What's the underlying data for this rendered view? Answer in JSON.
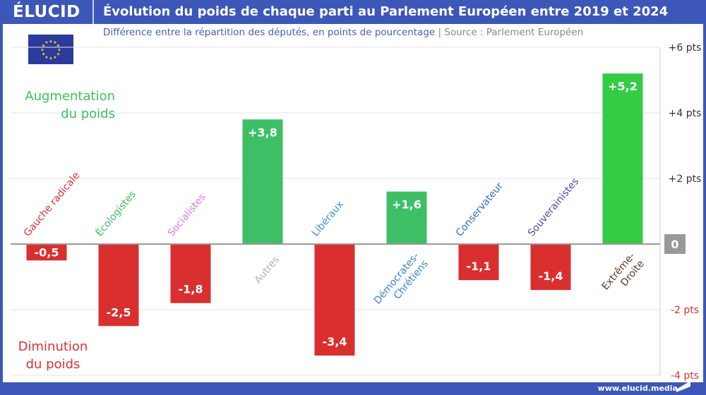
{
  "header": {
    "logo": "ÉLUCID",
    "title": "Évolution du poids de chaque parti au Parlement Européen entre 2019 et 2024"
  },
  "subtitle": {
    "text": "Différence entre la répartition des députés, en points de pourcentage",
    "separator": "|",
    "source": "Source : Parlement Européen"
  },
  "footer": {
    "url": "www.elucid.media"
  },
  "annotations": {
    "up": [
      "Augmentation",
      "du poids"
    ],
    "down": [
      "Diminution",
      "du poids"
    ],
    "up_color": "#3dbf5c",
    "down_color": "#d93434"
  },
  "chart_data": {
    "type": "bar",
    "categories": [
      [
        "Gauche radicale"
      ],
      [
        "Écologistes"
      ],
      [
        "Socialistes"
      ],
      [
        "Autres"
      ],
      [
        "Libéraux"
      ],
      [
        "Démocrates-",
        "Chrétiens"
      ],
      [
        "Conservateur"
      ],
      [
        "Souverainistes"
      ],
      [
        "Extrême-",
        "Droite"
      ]
    ],
    "category_colors": [
      "#d93434",
      "#3dbf5c",
      "#d77fd8",
      "#b0b0b0",
      "#3f8fd6",
      "#3f7fd0",
      "#2f6fc6",
      "#4a4ab0",
      "#5a3a28"
    ],
    "values": [
      -0.5,
      -2.5,
      -1.8,
      3.8,
      -3.4,
      1.6,
      -1.1,
      -1.4,
      5.2
    ],
    "value_labels": [
      "-0,5",
      "-2,5",
      "-1,8",
      "+3,8",
      "-3,4",
      "+1,6",
      "-1,1",
      "-1,4",
      "+5,2"
    ],
    "bar_colors": [
      "#d92f2f",
      "#d92f2f",
      "#d92f2f",
      "#3dbf66",
      "#d92f2f",
      "#3dbf66",
      "#d92f2f",
      "#d92f2f",
      "#33cc44"
    ],
    "ylim": [
      -4,
      6
    ],
    "yticks": [
      6,
      4,
      2,
      0,
      -2,
      -4
    ],
    "ytick_labels": [
      "+6 pts",
      "+4 pts",
      "+2 pts",
      "0",
      "-2 pts",
      "-4 pts"
    ],
    "ytick_colors": [
      "#333",
      "#333",
      "#333",
      "#fff",
      "#d93434",
      "#d93434"
    ],
    "grid": true
  }
}
